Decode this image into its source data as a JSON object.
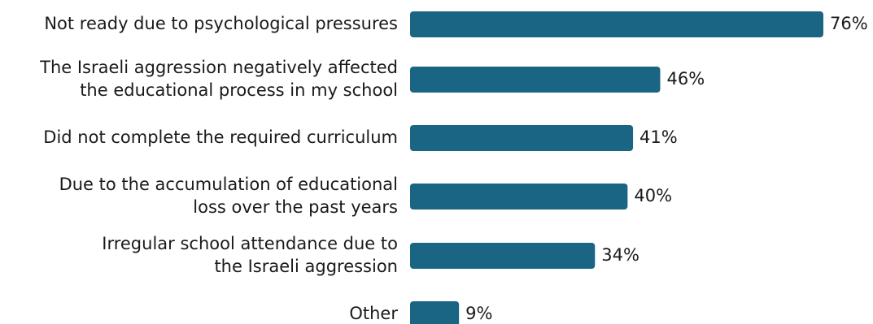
{
  "chart_data": {
    "type": "bar",
    "orientation": "horizontal",
    "title": "",
    "xlabel": "",
    "ylabel": "",
    "categories": [
      [
        "Not ready due to psychological pressures"
      ],
      [
        "The Israeli aggression negatively affected",
        "the educational process in my school"
      ],
      [
        "Did not complete the required curriculum"
      ],
      [
        "Due to the accumulation of educational",
        "loss over the past years"
      ],
      [
        "Irregular school attendance due to",
        "the Israeli aggression"
      ],
      [
        "Other"
      ]
    ],
    "values": [
      76,
      46,
      41,
      40,
      34,
      9
    ],
    "value_labels": [
      "76%",
      "46%",
      "41%",
      "40%",
      "34%",
      "9%"
    ],
    "xlim": [
      0,
      76
    ],
    "grid": false,
    "legend": "none",
    "bar_color": "#1b6584"
  }
}
